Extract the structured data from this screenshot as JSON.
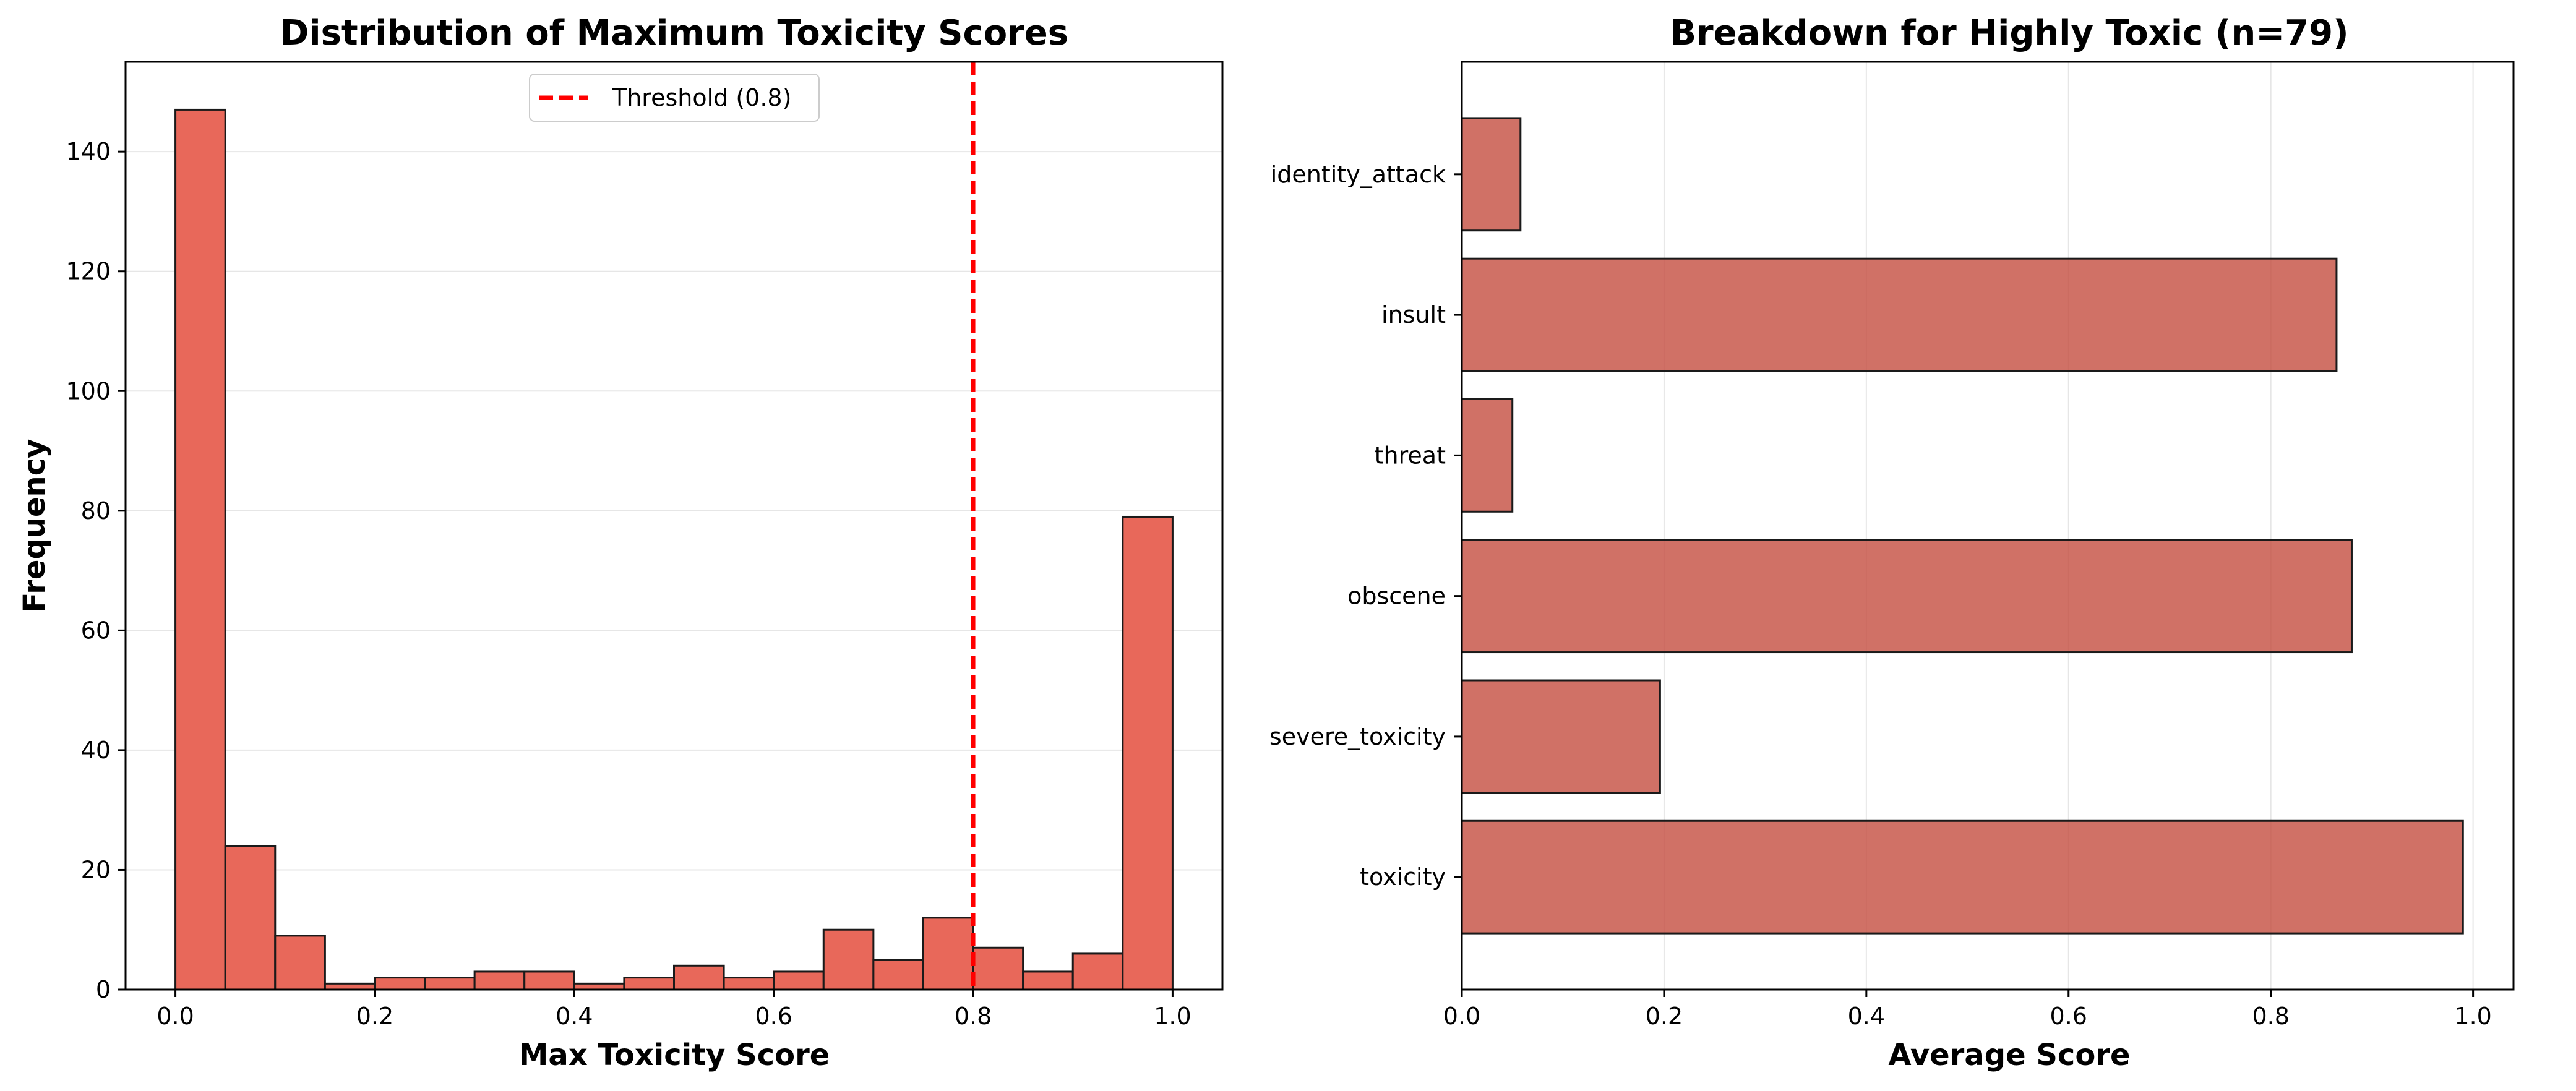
{
  "chart_data": [
    {
      "type": "bar",
      "subtype": "histogram",
      "title": "Distribution of Maximum Toxicity Scores",
      "xlabel": "Max Toxicity Score",
      "ylabel": "Frequency",
      "xlim": [
        -0.05,
        1.05
      ],
      "ylim": [
        0,
        155
      ],
      "xticks": [
        0.0,
        0.2,
        0.4,
        0.6,
        0.8,
        1.0
      ],
      "xtick_labels": [
        "0.0",
        "0.2",
        "0.4",
        "0.6",
        "0.8",
        "1.0"
      ],
      "yticks": [
        0,
        20,
        40,
        60,
        80,
        100,
        120,
        140
      ],
      "ytick_labels": [
        "0",
        "20",
        "40",
        "60",
        "80",
        "100",
        "120",
        "140"
      ],
      "bin_edges": [
        0.0,
        0.05,
        0.1,
        0.15,
        0.2,
        0.25,
        0.3,
        0.35,
        0.4,
        0.45,
        0.5,
        0.55,
        0.6,
        0.65,
        0.7,
        0.75,
        0.8,
        0.85,
        0.9,
        0.95,
        1.0
      ],
      "values": [
        147,
        24,
        9,
        1,
        2,
        2,
        3,
        3,
        1,
        2,
        4,
        2,
        3,
        10,
        5,
        12,
        7,
        3,
        6,
        79
      ],
      "bar_color": "#e8685a",
      "grid": "y",
      "threshold": {
        "x": 0.8,
        "label": "Threshold (0.8)",
        "color": "#ff0000",
        "style": "dashed"
      },
      "legend_position": "upper center"
    },
    {
      "type": "bar",
      "orientation": "horizontal",
      "title": "Breakdown for Highly Toxic (n=79)",
      "xlabel": "Average Score",
      "ylabel": "",
      "xlim": [
        0,
        1.04
      ],
      "xticks": [
        0.0,
        0.2,
        0.4,
        0.6,
        0.8,
        1.0
      ],
      "xtick_labels": [
        "0.0",
        "0.2",
        "0.4",
        "0.6",
        "0.8",
        "1.0"
      ],
      "categories": [
        "identity_attack",
        "insult",
        "threat",
        "obscene",
        "severe_toxicity",
        "toxicity"
      ],
      "values": [
        0.058,
        0.865,
        0.05,
        0.88,
        0.196,
        0.99
      ],
      "bar_color": "#c44e40",
      "grid": "x"
    }
  ]
}
